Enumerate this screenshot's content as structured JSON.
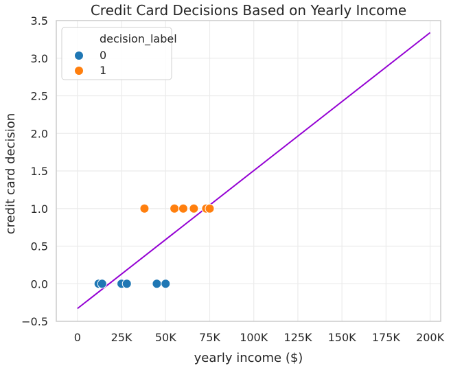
{
  "chart_data": {
    "type": "scatter",
    "title": "Credit Card Decisions Based on Yearly Income",
    "xlabel": "yearly income ($)",
    "ylabel": "credit card decision",
    "xlim": [
      -12000,
      206000
    ],
    "ylim": [
      -0.5,
      3.5
    ],
    "xticks": [
      0,
      25000,
      50000,
      75000,
      100000,
      125000,
      150000,
      175000,
      200000
    ],
    "xtick_labels": [
      "0",
      "25K",
      "50K",
      "75K",
      "100K",
      "125K",
      "150K",
      "175K",
      "200K"
    ],
    "yticks": [
      -0.5,
      0.0,
      0.5,
      1.0,
      1.5,
      2.0,
      2.5,
      3.0,
      3.5
    ],
    "ytick_labels": [
      "−0.5",
      "0.0",
      "0.5",
      "1.0",
      "1.5",
      "2.0",
      "2.5",
      "3.0",
      "3.5"
    ],
    "grid": true,
    "legend": {
      "title": "decision_label",
      "placement": "top-left",
      "entries": [
        {
          "label": "0",
          "color": "#1f77b4"
        },
        {
          "label": "1",
          "color": "#ff7f0e"
        }
      ]
    },
    "series": [
      {
        "name": "0",
        "color": "#1f77b4",
        "x": [
          12000,
          14000,
          25000,
          28000,
          45000,
          50000
        ],
        "y": [
          0,
          0,
          0,
          0,
          0,
          0
        ]
      },
      {
        "name": "1",
        "color": "#ff7f0e",
        "x": [
          38000,
          55000,
          60000,
          66000,
          73000,
          75000
        ],
        "y": [
          1,
          1,
          1,
          1,
          1,
          1
        ]
      }
    ],
    "fit_line": {
      "color": "#9400d3",
      "x": [
        0,
        200000
      ],
      "y": [
        -0.33,
        3.34
      ]
    }
  }
}
